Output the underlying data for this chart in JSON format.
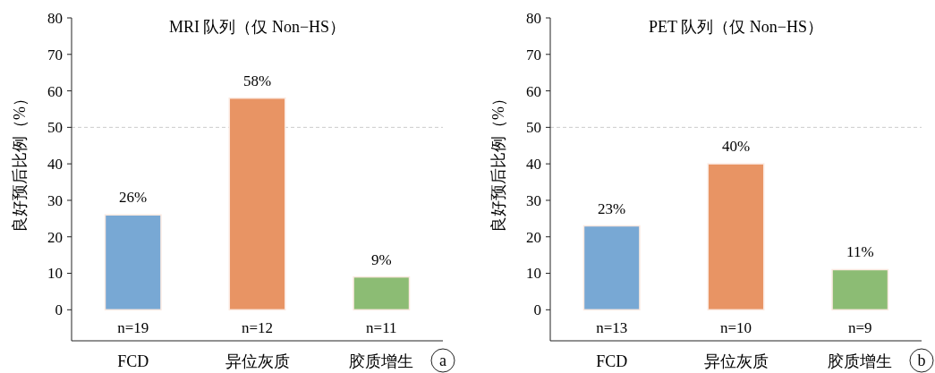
{
  "chart_data": [
    {
      "type": "bar",
      "title": "MRI 队列（仅 Non−HS）",
      "ylabel": "良好预后比例（%）",
      "categories": [
        "FCD",
        "异位灰质",
        "胶质增生"
      ],
      "values": [
        26,
        58,
        9
      ],
      "colors": [
        "#78a8d4",
        "#e89464",
        "#8cbc74"
      ],
      "value_labels": [
        "26%",
        "58%",
        "9%"
      ],
      "ylim": [
        -8.5,
        80
      ],
      "yticks": [
        0,
        10,
        20,
        30,
        40,
        50,
        60,
        70,
        80
      ],
      "ref_lines": [
        {
          "axis": "y",
          "value": 50,
          "color": "#cccccc",
          "line_style": "dashed"
        }
      ],
      "annotations": [
        "n=19",
        "n=12",
        "n=11",
        "a"
      ]
    },
    {
      "type": "bar",
      "title": "PET 队列（仅 Non−HS）",
      "ylabel": "良好预后比例（%）",
      "categories": [
        "FCD",
        "异位灰质",
        "胶质增生"
      ],
      "values": [
        23,
        40,
        11
      ],
      "colors": [
        "#78a8d4",
        "#e89464",
        "#8cbc74"
      ],
      "value_labels": [
        "23%",
        "40%",
        "11%"
      ],
      "ylim": [
        -8.5,
        80
      ],
      "yticks": [
        0,
        10,
        20,
        30,
        40,
        50,
        60,
        70,
        80
      ],
      "ref_lines": [
        {
          "axis": "y",
          "value": 50,
          "color": "#cccccc",
          "line_style": "dashed"
        }
      ],
      "annotations": [
        "n=13",
        "n=10",
        "n=9",
        "b"
      ]
    }
  ]
}
